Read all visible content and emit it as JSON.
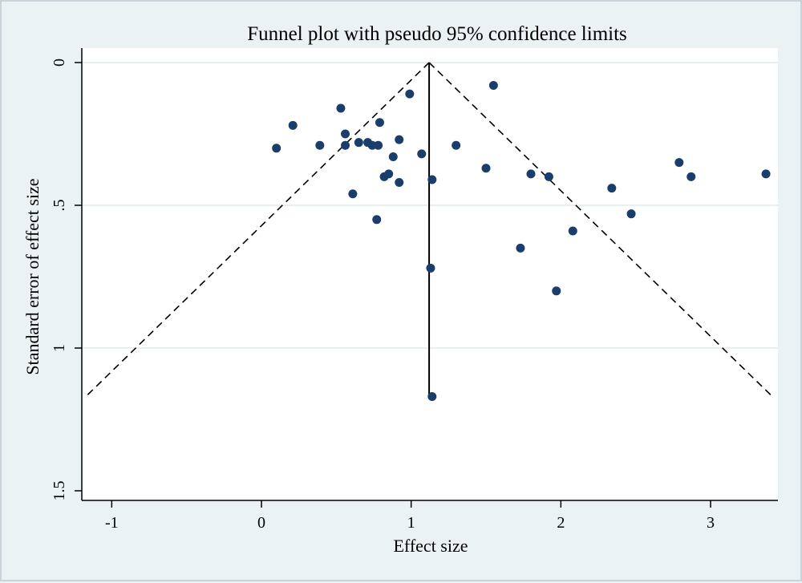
{
  "chart_data": {
    "type": "scatter",
    "title": "Funnel plot with pseudo 95% confidence limits",
    "xlabel": "Effect size",
    "ylabel": "Standard error of effect size",
    "xlim": [
      -1.2,
      3.45
    ],
    "ylim": [
      0,
      1.5
    ],
    "y_reversed": true,
    "x_ticks": [
      -1,
      0,
      1,
      2,
      3
    ],
    "x_tick_labels": [
      "-1",
      "0",
      "1",
      "2",
      "3"
    ],
    "y_ticks": [
      0,
      0.5,
      1,
      1.5
    ],
    "y_tick_labels": [
      "0",
      ".5",
      "1",
      "1.5"
    ],
    "grid": "horizontal",
    "pooled_effect": 1.12,
    "pooled_line_se_range": [
      0,
      1.17
    ],
    "ci_limits": {
      "z": 1.96,
      "apex": [
        1.12,
        0
      ],
      "se_max": 1.17
    },
    "points": [
      {
        "x": 0.1,
        "y": 0.3
      },
      {
        "x": 0.21,
        "y": 0.22
      },
      {
        "x": 0.39,
        "y": 0.29
      },
      {
        "x": 0.53,
        "y": 0.16
      },
      {
        "x": 0.56,
        "y": 0.25
      },
      {
        "x": 0.56,
        "y": 0.29
      },
      {
        "x": 0.61,
        "y": 0.46
      },
      {
        "x": 0.65,
        "y": 0.28
      },
      {
        "x": 0.71,
        "y": 0.28
      },
      {
        "x": 0.74,
        "y": 0.29
      },
      {
        "x": 0.78,
        "y": 0.29
      },
      {
        "x": 0.77,
        "y": 0.55
      },
      {
        "x": 0.79,
        "y": 0.21
      },
      {
        "x": 0.82,
        "y": 0.4
      },
      {
        "x": 0.85,
        "y": 0.39
      },
      {
        "x": 0.88,
        "y": 0.33
      },
      {
        "x": 0.92,
        "y": 0.27
      },
      {
        "x": 0.92,
        "y": 0.42
      },
      {
        "x": 0.99,
        "y": 0.11
      },
      {
        "x": 1.07,
        "y": 0.32
      },
      {
        "x": 1.13,
        "y": 0.72
      },
      {
        "x": 1.14,
        "y": 0.41
      },
      {
        "x": 1.14,
        "y": 1.17
      },
      {
        "x": 1.3,
        "y": 0.29
      },
      {
        "x": 1.5,
        "y": 0.37
      },
      {
        "x": 1.55,
        "y": 0.08
      },
      {
        "x": 1.73,
        "y": 0.65
      },
      {
        "x": 1.8,
        "y": 0.39
      },
      {
        "x": 1.92,
        "y": 0.4
      },
      {
        "x": 1.97,
        "y": 0.8
      },
      {
        "x": 2.08,
        "y": 0.59
      },
      {
        "x": 2.34,
        "y": 0.44
      },
      {
        "x": 2.47,
        "y": 0.53
      },
      {
        "x": 2.79,
        "y": 0.35
      },
      {
        "x": 2.87,
        "y": 0.4
      },
      {
        "x": 3.37,
        "y": 0.39
      }
    ],
    "colors": {
      "point": "#1a3e6b",
      "ci_line": "#000000",
      "pooled_line": "#000000",
      "grid": "#dfeaec",
      "plot_bg": "#ffffff",
      "outer_bg": "#eaf2f3"
    }
  }
}
